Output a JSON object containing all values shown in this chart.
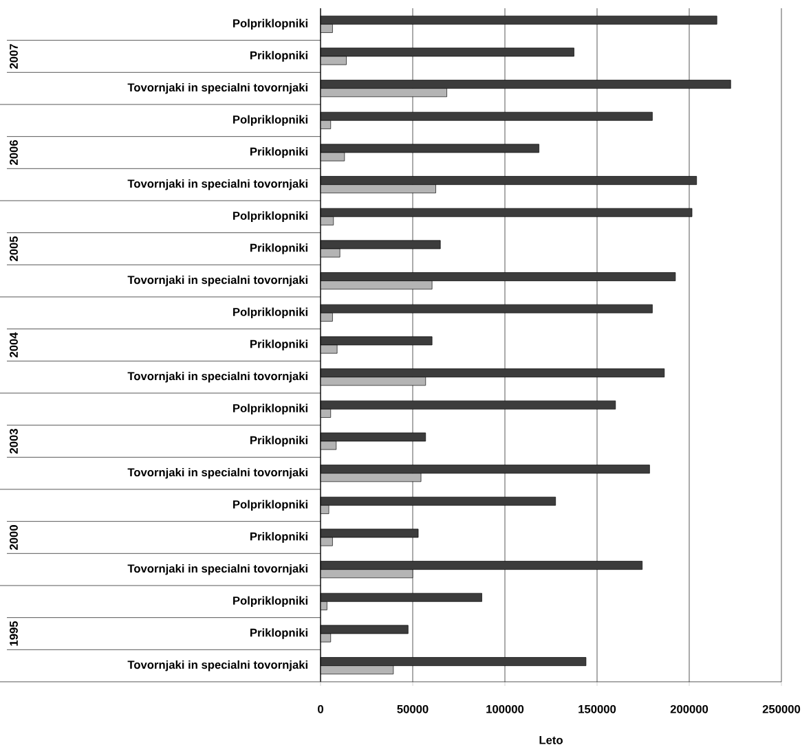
{
  "chart_data": {
    "type": "bar",
    "orientation": "horizontal",
    "xlabel": "Leto",
    "categories": [
      "Polpriklopniki",
      "Priklopniki",
      "Tovornjaki in specialni tovornjaki",
      "Polpriklopniki",
      "Priklopniki",
      "Tovornjaki in specialni tovornjaki",
      "Polpriklopniki",
      "Priklopniki",
      "Tovornjaki in specialni tovornjaki",
      "Polpriklopniki",
      "Priklopniki",
      "Tovornjaki in specialni tovornjaki",
      "Polpriklopniki",
      "Priklopniki",
      "Tovornjaki in specialni tovornjaki",
      "Polpriklopniki",
      "Priklopniki",
      "Tovornjaki in specialni tovornjaki",
      "Polpriklopniki",
      "Priklopniki",
      "Tovornjaki in specialni tovornjaki"
    ],
    "annotations": [
      "2007",
      "2006",
      "2005",
      "2004",
      "2003",
      "2000",
      "1995"
    ],
    "series": [
      {
        "color": "#3c3c3c",
        "values": [
          215000,
          137500,
          222500,
          180000,
          118500,
          204000,
          201500,
          65000,
          192500,
          180000,
          60500,
          186500,
          160000,
          57000,
          178500,
          127500,
          53000,
          174500,
          87500,
          47500,
          144000
        ]
      },
      {
        "color": "#b4b4b4",
        "values": [
          6500,
          14000,
          68500,
          5500,
          13000,
          62500,
          7000,
          10500,
          60500,
          6500,
          9000,
          57000,
          5500,
          8500,
          54500,
          4500,
          6500,
          50000,
          3500,
          5500,
          39500
        ]
      }
    ],
    "xlim": [
      0,
      250000
    ],
    "xticks": [
      0,
      50000,
      100000,
      150000,
      200000,
      250000
    ],
    "grid": "x"
  }
}
